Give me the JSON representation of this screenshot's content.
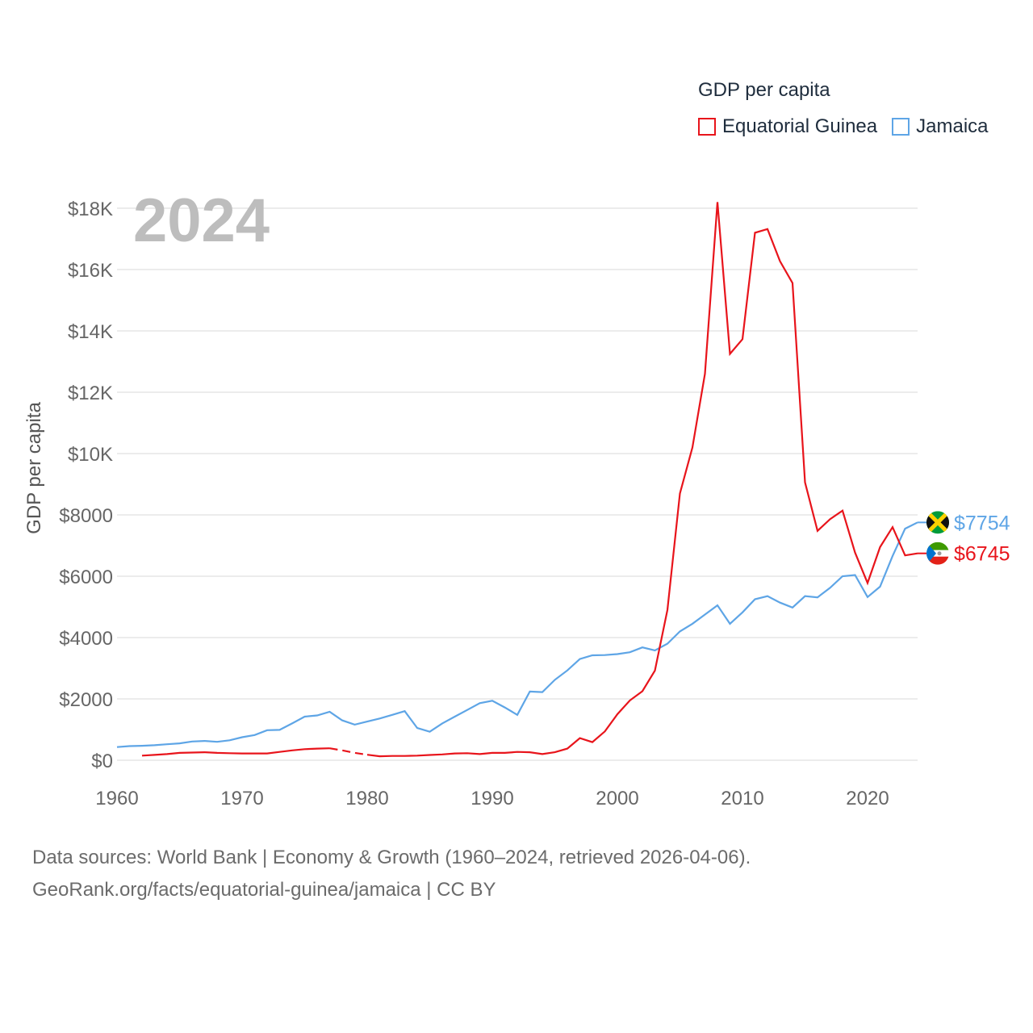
{
  "legend": {
    "title": "GDP per capita",
    "items": [
      {
        "label": "Equatorial Guinea",
        "color": "#e8141b"
      },
      {
        "label": "Jamaica",
        "color": "#5ea5e6"
      }
    ]
  },
  "year_label": "2024",
  "footer": {
    "line1": "Data sources: World Bank | Economy & Growth (1960–2024, retrieved 2026-04-06).",
    "line2": "GeoRank.org/facts/equatorial-guinea/jamaica | CC BY"
  },
  "chart_data": {
    "type": "line",
    "ylabel": "GDP per capita",
    "xlabel": "",
    "xlim": [
      1960,
      2024
    ],
    "ylim": [
      0,
      18000
    ],
    "yticks": [
      0,
      2000,
      4000,
      6000,
      8000,
      10000,
      12000,
      14000,
      16000,
      18000
    ],
    "ytick_labels": [
      "$0",
      "$2000",
      "$4000",
      "$6000",
      "$8000",
      "$10K",
      "$12K",
      "$14K",
      "$16K",
      "$18K"
    ],
    "xticks": [
      1960,
      1970,
      1980,
      1990,
      2000,
      2010,
      2020
    ],
    "xtick_labels": [
      "1960",
      "1970",
      "1980",
      "1990",
      "2000",
      "2010",
      "2020"
    ],
    "grid": true,
    "series": [
      {
        "name": "Jamaica",
        "color": "#5ea5e6",
        "end_label": "$7754",
        "x": [
          1960,
          1961,
          1962,
          1963,
          1964,
          1965,
          1966,
          1967,
          1968,
          1969,
          1970,
          1971,
          1972,
          1973,
          1974,
          1975,
          1976,
          1977,
          1978,
          1979,
          1980,
          1981,
          1982,
          1983,
          1984,
          1985,
          1986,
          1987,
          1988,
          1989,
          1990,
          1991,
          1992,
          1993,
          1994,
          1995,
          1996,
          1997,
          1998,
          1999,
          2000,
          2001,
          2002,
          2003,
          2004,
          2005,
          2006,
          2007,
          2008,
          2009,
          2010,
          2011,
          2012,
          2013,
          2014,
          2015,
          2016,
          2017,
          2018,
          2019,
          2020,
          2021,
          2022,
          2023,
          2024
        ],
        "y": [
          430,
          460,
          470,
          490,
          520,
          550,
          610,
          630,
          600,
          650,
          750,
          820,
          980,
          990,
          1200,
          1420,
          1460,
          1580,
          1300,
          1160,
          1260,
          1360,
          1480,
          1600,
          1050,
          930,
          1200,
          1420,
          1640,
          1860,
          1940,
          1720,
          1480,
          2240,
          2220,
          2620,
          2930,
          3300,
          3420,
          3430,
          3460,
          3520,
          3680,
          3580,
          3800,
          4200,
          4450,
          4750,
          5050,
          4450,
          4820,
          5250,
          5350,
          5140,
          4980,
          5350,
          5310,
          5620,
          6000,
          6040,
          5320,
          5660,
          6660,
          7550,
          7754
        ]
      },
      {
        "name": "Equatorial Guinea",
        "color": "#e8141b",
        "end_label": "$6745",
        "x": [
          1962,
          1963,
          1964,
          1965,
          1966,
          1967,
          1968,
          1969,
          1970,
          1971,
          1972,
          1973,
          1974,
          1975,
          1976,
          1977,
          1978,
          1979,
          1980,
          1981,
          1982,
          1983,
          1984,
          1985,
          1986,
          1987,
          1988,
          1989,
          1990,
          1991,
          1992,
          1993,
          1994,
          1995,
          1996,
          1997,
          1998,
          1999,
          2000,
          2001,
          2002,
          2003,
          2004,
          2005,
          2006,
          2007,
          2008,
          2009,
          2010,
          2011,
          2012,
          2013,
          2014,
          2015,
          2016,
          2017,
          2018,
          2019,
          2020,
          2021,
          2022,
          2023,
          2024
        ],
        "y": [
          150,
          175,
          200,
          240,
          250,
          260,
          240,
          230,
          220,
          220,
          220,
          270,
          320,
          360,
          380,
          390,
          320,
          240,
          180,
          130,
          140,
          140,
          150,
          170,
          190,
          220,
          230,
          200,
          240,
          240,
          270,
          260,
          200,
          260,
          380,
          720,
          590,
          940,
          1500,
          1950,
          2250,
          2920,
          4900,
          8700,
          10200,
          12600,
          18200,
          13250,
          13730,
          17200,
          17320,
          16270,
          15560,
          9060,
          7480,
          7860,
          8140,
          6770,
          5780,
          6950,
          7600,
          6680,
          6745
        ],
        "dashed_x_range": [
          1977,
          1980
        ]
      }
    ]
  }
}
